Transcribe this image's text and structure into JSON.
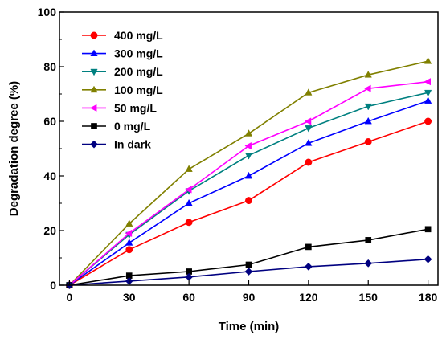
{
  "chart_data": {
    "type": "line",
    "xlabel": "Time (min)",
    "ylabel": "Degradation degree (%)",
    "xlim": [
      -5,
      185
    ],
    "ylim": [
      0,
      100
    ],
    "x_ticks": [
      "0",
      "30",
      "60",
      "90",
      "120",
      "150",
      "180"
    ],
    "y_ticks": [
      "0",
      "20",
      "40",
      "60",
      "80",
      "100"
    ],
    "x": [
      0,
      30,
      60,
      90,
      120,
      150,
      180
    ],
    "legend_position": "top-left",
    "grid": false,
    "series": [
      {
        "name": "400 mg/L",
        "color": "#ff0000",
        "marker": "circle",
        "values": [
          0,
          13,
          23,
          31,
          45,
          52.5,
          60
        ]
      },
      {
        "name": "300 mg/L",
        "color": "#0000ff",
        "marker": "triangle-up",
        "values": [
          0,
          15.5,
          30,
          40,
          52,
          60,
          67.5
        ]
      },
      {
        "name": "200 mg/L",
        "color": "#008080",
        "marker": "triangle-down",
        "values": [
          0,
          18.5,
          34.5,
          47.5,
          57.5,
          65.5,
          70.5
        ]
      },
      {
        "name": "100 mg/L",
        "color": "#808000",
        "marker": "triangle-up",
        "values": [
          0,
          22.5,
          42.5,
          55.5,
          70.5,
          77,
          82
        ]
      },
      {
        "name": "50 mg/L",
        "color": "#ff00ff",
        "marker": "triangle-left",
        "values": [
          0,
          19,
          35,
          51,
          60,
          72,
          74.5
        ]
      },
      {
        "name": "0 mg/L",
        "color": "#000000",
        "marker": "square",
        "values": [
          0,
          3.5,
          5,
          7.5,
          14,
          16.5,
          20.5
        ]
      },
      {
        "name": "In dark",
        "color": "#000080",
        "marker": "diamond",
        "values": [
          0,
          1.5,
          3,
          5,
          6.8,
          8,
          9.5
        ]
      }
    ]
  }
}
